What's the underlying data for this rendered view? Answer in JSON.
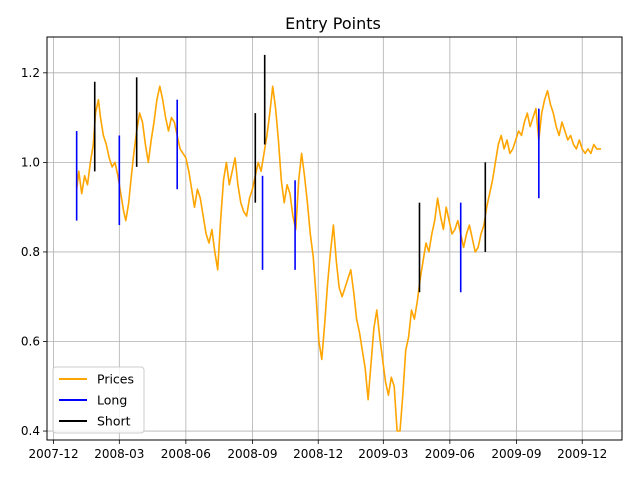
{
  "chart_data": {
    "type": "line",
    "title": "Entry Points",
    "xlabel": "",
    "ylabel": "",
    "x_range": [
      "2007-11-22",
      "2010-01-25"
    ],
    "ylim": [
      0.38,
      1.28
    ],
    "grid": true,
    "legend_placement": "lower-left",
    "x_ticks": [
      {
        "date": "2007-12-01",
        "label": "2007-12"
      },
      {
        "date": "2008-03-01",
        "label": "2008-03"
      },
      {
        "date": "2008-06-01",
        "label": "2008-06"
      },
      {
        "date": "2008-09-01",
        "label": "2008-09"
      },
      {
        "date": "2008-12-01",
        "label": "2008-12"
      },
      {
        "date": "2009-03-01",
        "label": "2009-03"
      },
      {
        "date": "2009-06-01",
        "label": "2009-06"
      },
      {
        "date": "2009-09-01",
        "label": "2009-09"
      },
      {
        "date": "2009-12-01",
        "label": "2009-12"
      }
    ],
    "y_ticks": [
      {
        "value": 0.4,
        "label": "0.4"
      },
      {
        "value": 0.6,
        "label": "0.6"
      },
      {
        "value": 0.8,
        "label": "0.8"
      },
      {
        "value": 1.0,
        "label": "1.0"
      },
      {
        "value": 1.2,
        "label": "1.2"
      }
    ],
    "series": [
      {
        "name": "Prices",
        "color": "#ffa500",
        "points": [
          [
            "2008-01-02",
            0.94
          ],
          [
            "2008-01-05",
            0.98
          ],
          [
            "2008-01-09",
            0.93
          ],
          [
            "2008-01-13",
            0.97
          ],
          [
            "2008-01-17",
            0.95
          ],
          [
            "2008-01-21",
            1.0
          ],
          [
            "2008-01-25",
            1.04
          ],
          [
            "2008-01-28",
            1.11
          ],
          [
            "2008-02-01",
            1.14
          ],
          [
            "2008-02-04",
            1.1
          ],
          [
            "2008-02-08",
            1.06
          ],
          [
            "2008-02-12",
            1.04
          ],
          [
            "2008-02-16",
            1.01
          ],
          [
            "2008-02-20",
            0.99
          ],
          [
            "2008-02-24",
            1.0
          ],
          [
            "2008-02-28",
            0.97
          ],
          [
            "2008-03-03",
            0.93
          ],
          [
            "2008-03-07",
            0.89
          ],
          [
            "2008-03-10",
            0.87
          ],
          [
            "2008-03-14",
            0.91
          ],
          [
            "2008-03-17",
            0.96
          ],
          [
            "2008-03-21",
            1.02
          ],
          [
            "2008-03-25",
            1.07
          ],
          [
            "2008-03-29",
            1.11
          ],
          [
            "2008-04-02",
            1.09
          ],
          [
            "2008-04-06",
            1.04
          ],
          [
            "2008-04-10",
            1.0
          ],
          [
            "2008-04-14",
            1.05
          ],
          [
            "2008-04-18",
            1.09
          ],
          [
            "2008-04-22",
            1.14
          ],
          [
            "2008-04-26",
            1.17
          ],
          [
            "2008-04-30",
            1.14
          ],
          [
            "2008-05-04",
            1.1
          ],
          [
            "2008-05-08",
            1.07
          ],
          [
            "2008-05-12",
            1.1
          ],
          [
            "2008-05-16",
            1.09
          ],
          [
            "2008-05-20",
            1.06
          ],
          [
            "2008-05-24",
            1.03
          ],
          [
            "2008-05-28",
            1.02
          ],
          [
            "2008-06-01",
            1.01
          ],
          [
            "2008-06-05",
            0.98
          ],
          [
            "2008-06-09",
            0.94
          ],
          [
            "2008-06-13",
            0.9
          ],
          [
            "2008-06-17",
            0.94
          ],
          [
            "2008-06-21",
            0.92
          ],
          [
            "2008-06-25",
            0.88
          ],
          [
            "2008-06-29",
            0.84
          ],
          [
            "2008-07-03",
            0.82
          ],
          [
            "2008-07-07",
            0.85
          ],
          [
            "2008-07-11",
            0.8
          ],
          [
            "2008-07-15",
            0.76
          ],
          [
            "2008-07-19",
            0.87
          ],
          [
            "2008-07-23",
            0.96
          ],
          [
            "2008-07-27",
            1.0
          ],
          [
            "2008-07-31",
            0.95
          ],
          [
            "2008-08-04",
            0.98
          ],
          [
            "2008-08-08",
            1.01
          ],
          [
            "2008-08-12",
            0.95
          ],
          [
            "2008-08-16",
            0.91
          ],
          [
            "2008-08-20",
            0.89
          ],
          [
            "2008-08-24",
            0.88
          ],
          [
            "2008-08-28",
            0.92
          ],
          [
            "2008-09-01",
            0.94
          ],
          [
            "2008-09-05",
            0.97
          ],
          [
            "2008-09-09",
            1.0
          ],
          [
            "2008-09-13",
            0.98
          ],
          [
            "2008-09-17",
            1.02
          ],
          [
            "2008-09-21",
            1.06
          ],
          [
            "2008-09-25",
            1.11
          ],
          [
            "2008-09-29",
            1.17
          ],
          [
            "2008-10-03",
            1.12
          ],
          [
            "2008-10-07",
            1.05
          ],
          [
            "2008-10-11",
            0.96
          ],
          [
            "2008-10-15",
            0.91
          ],
          [
            "2008-10-19",
            0.95
          ],
          [
            "2008-10-23",
            0.93
          ],
          [
            "2008-10-27",
            0.88
          ],
          [
            "2008-10-31",
            0.85
          ],
          [
            "2008-11-04",
            0.96
          ],
          [
            "2008-11-08",
            1.02
          ],
          [
            "2008-11-12",
            0.97
          ],
          [
            "2008-11-16",
            0.91
          ],
          [
            "2008-11-20",
            0.84
          ],
          [
            "2008-11-24",
            0.79
          ],
          [
            "2008-11-28",
            0.7
          ],
          [
            "2008-12-02",
            0.6
          ],
          [
            "2008-12-06",
            0.56
          ],
          [
            "2008-12-10",
            0.64
          ],
          [
            "2008-12-14",
            0.73
          ],
          [
            "2008-12-18",
            0.8
          ],
          [
            "2008-12-22",
            0.86
          ],
          [
            "2008-12-26",
            0.78
          ],
          [
            "2008-12-30",
            0.72
          ],
          [
            "2009-01-03",
            0.7
          ],
          [
            "2009-01-07",
            0.72
          ],
          [
            "2009-01-11",
            0.74
          ],
          [
            "2009-01-15",
            0.76
          ],
          [
            "2009-01-19",
            0.71
          ],
          [
            "2009-01-23",
            0.65
          ],
          [
            "2009-01-27",
            0.62
          ],
          [
            "2009-01-31",
            0.58
          ],
          [
            "2009-02-04",
            0.54
          ],
          [
            "2009-02-08",
            0.47
          ],
          [
            "2009-02-12",
            0.55
          ],
          [
            "2009-02-16",
            0.63
          ],
          [
            "2009-02-20",
            0.67
          ],
          [
            "2009-02-24",
            0.61
          ],
          [
            "2009-02-28",
            0.56
          ],
          [
            "2009-03-04",
            0.51
          ],
          [
            "2009-03-08",
            0.48
          ],
          [
            "2009-03-12",
            0.52
          ],
          [
            "2009-03-16",
            0.5
          ],
          [
            "2009-03-20",
            0.4
          ],
          [
            "2009-03-24",
            0.4
          ],
          [
            "2009-03-28",
            0.48
          ],
          [
            "2009-04-01",
            0.58
          ],
          [
            "2009-04-05",
            0.61
          ],
          [
            "2009-04-09",
            0.67
          ],
          [
            "2009-04-13",
            0.65
          ],
          [
            "2009-04-17",
            0.69
          ],
          [
            "2009-04-21",
            0.74
          ],
          [
            "2009-04-25",
            0.78
          ],
          [
            "2009-04-29",
            0.82
          ],
          [
            "2009-05-03",
            0.8
          ],
          [
            "2009-05-07",
            0.84
          ],
          [
            "2009-05-11",
            0.87
          ],
          [
            "2009-05-15",
            0.92
          ],
          [
            "2009-05-19",
            0.88
          ],
          [
            "2009-05-23",
            0.85
          ],
          [
            "2009-05-27",
            0.9
          ],
          [
            "2009-05-31",
            0.87
          ],
          [
            "2009-06-04",
            0.84
          ],
          [
            "2009-06-08",
            0.85
          ],
          [
            "2009-06-12",
            0.87
          ],
          [
            "2009-06-16",
            0.84
          ],
          [
            "2009-06-20",
            0.81
          ],
          [
            "2009-06-24",
            0.84
          ],
          [
            "2009-06-28",
            0.86
          ],
          [
            "2009-07-02",
            0.83
          ],
          [
            "2009-07-06",
            0.8
          ],
          [
            "2009-07-10",
            0.81
          ],
          [
            "2009-07-14",
            0.84
          ],
          [
            "2009-07-18",
            0.86
          ],
          [
            "2009-07-22",
            0.9
          ],
          [
            "2009-07-26",
            0.93
          ],
          [
            "2009-07-30",
            0.96
          ],
          [
            "2009-08-03",
            1.0
          ],
          [
            "2009-08-07",
            1.04
          ],
          [
            "2009-08-11",
            1.06
          ],
          [
            "2009-08-15",
            1.03
          ],
          [
            "2009-08-19",
            1.05
          ],
          [
            "2009-08-23",
            1.02
          ],
          [
            "2009-08-27",
            1.03
          ],
          [
            "2009-08-31",
            1.05
          ],
          [
            "2009-09-04",
            1.07
          ],
          [
            "2009-09-08",
            1.06
          ],
          [
            "2009-09-12",
            1.09
          ],
          [
            "2009-09-16",
            1.11
          ],
          [
            "2009-09-20",
            1.08
          ],
          [
            "2009-09-24",
            1.1
          ],
          [
            "2009-09-28",
            1.12
          ],
          [
            "2009-10-02",
            1.05
          ],
          [
            "2009-10-06",
            1.11
          ],
          [
            "2009-10-10",
            1.14
          ],
          [
            "2009-10-14",
            1.16
          ],
          [
            "2009-10-18",
            1.13
          ],
          [
            "2009-10-22",
            1.11
          ],
          [
            "2009-10-26",
            1.08
          ],
          [
            "2009-10-30",
            1.06
          ],
          [
            "2009-11-03",
            1.09
          ],
          [
            "2009-11-07",
            1.07
          ],
          [
            "2009-11-11",
            1.05
          ],
          [
            "2009-11-15",
            1.06
          ],
          [
            "2009-11-19",
            1.04
          ],
          [
            "2009-11-23",
            1.03
          ],
          [
            "2009-11-27",
            1.05
          ],
          [
            "2009-12-01",
            1.03
          ],
          [
            "2009-12-05",
            1.02
          ],
          [
            "2009-12-09",
            1.03
          ],
          [
            "2009-12-13",
            1.02
          ],
          [
            "2009-12-17",
            1.04
          ],
          [
            "2009-12-21",
            1.03
          ],
          [
            "2009-12-27",
            1.03
          ]
        ]
      },
      {
        "name": "Long",
        "color": "#0000ff",
        "segments": [
          {
            "date": "2008-01-02",
            "low": 0.87,
            "high": 1.07
          },
          {
            "date": "2008-03-01",
            "low": 0.86,
            "high": 1.06
          },
          {
            "date": "2008-05-20",
            "low": 0.94,
            "high": 1.14
          },
          {
            "date": "2008-09-15",
            "low": 0.76,
            "high": 0.97
          },
          {
            "date": "2008-10-30",
            "low": 0.76,
            "high": 0.96
          },
          {
            "date": "2009-06-16",
            "low": 0.71,
            "high": 0.91
          },
          {
            "date": "2009-10-02",
            "low": 0.92,
            "high": 1.12
          }
        ]
      },
      {
        "name": "Short",
        "color": "#000000",
        "segments": [
          {
            "date": "2008-01-27",
            "low": 0.98,
            "high": 1.18
          },
          {
            "date": "2008-03-25",
            "low": 0.99,
            "high": 1.19
          },
          {
            "date": "2008-09-05",
            "low": 0.91,
            "high": 1.11
          },
          {
            "date": "2008-09-18",
            "low": 1.04,
            "high": 1.24
          },
          {
            "date": "2009-04-20",
            "low": 0.71,
            "high": 0.91
          },
          {
            "date": "2009-07-20",
            "low": 0.8,
            "high": 1.0
          }
        ]
      }
    ]
  }
}
